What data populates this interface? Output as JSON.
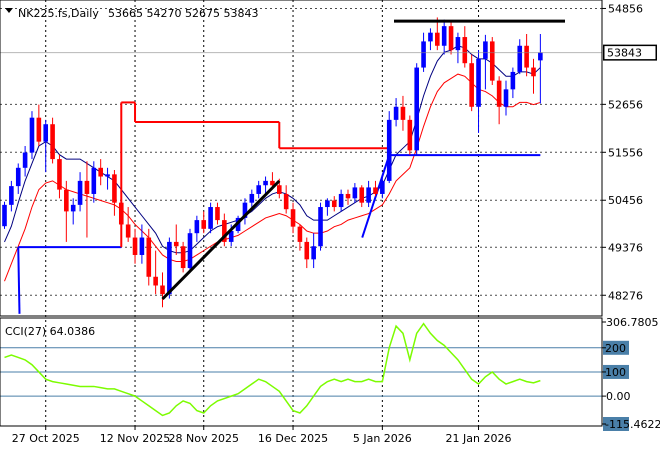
{
  "chart_data": [
    {
      "type": "candlestick",
      "title": "NK225.fs,Daily",
      "ohlc_header": "53665 54270 52675 53843",
      "last_price_label": "53843",
      "y_ticks": [
        "54856",
        "52656",
        "51556",
        "50456",
        "49376",
        "48276"
      ],
      "x_ticks": [
        "27 Oct 2025",
        "12 Nov 2025",
        "28 Nov 2025",
        "16 Dec 2025",
        "5 Jan 2026",
        "21 Jan 2026"
      ],
      "ylim": [
        47800,
        55050
      ],
      "grid": true,
      "colors": {
        "up": "#0000ff",
        "down": "#ff0000",
        "fast_ma": "#000080",
        "slow_ma": "#ff0000",
        "trailing_stop_up": "#0000ff",
        "trailing_stop_down": "#ff0000"
      },
      "candles": [
        [
          49860,
          50420,
          49800,
          50350
        ],
        [
          50350,
          50900,
          50200,
          50780
        ],
        [
          50780,
          51300,
          50600,
          51200
        ],
        [
          51200,
          51700,
          51000,
          51550
        ],
        [
          51550,
          52500,
          51400,
          52350
        ],
        [
          52350,
          52650,
          51700,
          51800
        ],
        [
          51800,
          52300,
          51100,
          52200
        ],
        [
          52200,
          52350,
          51300,
          51400
        ],
        [
          51400,
          51500,
          50500,
          50700
        ],
        [
          50700,
          50900,
          49500,
          50200
        ],
        [
          50200,
          50500,
          49900,
          50350
        ],
        [
          50350,
          51100,
          50200,
          50900
        ],
        [
          50900,
          51350,
          49600,
          50600
        ],
        [
          50600,
          51350,
          50400,
          51200
        ],
        [
          51200,
          51400,
          50800,
          51000
        ],
        [
          51000,
          51200,
          50700,
          51050
        ],
        [
          51050,
          51150,
          50100,
          50400
        ],
        [
          50400,
          50600,
          49700,
          49900
        ],
        [
          49900,
          50300,
          49500,
          49600
        ],
        [
          49600,
          49800,
          49000,
          49200
        ],
        [
          49200,
          49900,
          49000,
          49600
        ],
        [
          49600,
          49800,
          48500,
          48700
        ],
        [
          48700,
          49300,
          48300,
          48500
        ],
        [
          48500,
          48800,
          48000,
          48300
        ],
        [
          48300,
          49600,
          48200,
          49500
        ],
        [
          49500,
          49900,
          49200,
          49400
        ],
        [
          49400,
          49500,
          48800,
          48900
        ],
        [
          48900,
          49800,
          48800,
          49700
        ],
        [
          49700,
          50100,
          49500,
          50000
        ],
        [
          50000,
          50200,
          49700,
          49800
        ],
        [
          49800,
          50400,
          49700,
          50300
        ],
        [
          50300,
          50400,
          49900,
          50000
        ],
        [
          50000,
          50150,
          49400,
          49500
        ],
        [
          49500,
          49900,
          49400,
          49750
        ],
        [
          49750,
          50100,
          49700,
          50050
        ],
        [
          50050,
          50500,
          49900,
          50400
        ],
        [
          50400,
          50700,
          50300,
          50600
        ],
        [
          50600,
          50900,
          50500,
          50800
        ],
        [
          50800,
          51000,
          50600,
          50900
        ],
        [
          50900,
          51100,
          50700,
          50800
        ],
        [
          50800,
          50950,
          50500,
          50600
        ],
        [
          50600,
          50800,
          50150,
          50250
        ],
        [
          50250,
          50400,
          49700,
          49850
        ],
        [
          49850,
          49900,
          49300,
          49500
        ],
        [
          49500,
          49600,
          48900,
          49100
        ],
        [
          49100,
          49700,
          48900,
          49400
        ],
        [
          49400,
          50400,
          49300,
          50300
        ],
        [
          50300,
          50500,
          50100,
          50450
        ],
        [
          50450,
          50550,
          50200,
          50300
        ],
        [
          50300,
          50700,
          50200,
          50600
        ],
        [
          50600,
          50700,
          50350,
          50500
        ],
        [
          50500,
          50850,
          50400,
          50750
        ],
        [
          50750,
          50800,
          50300,
          50400
        ],
        [
          50400,
          50900,
          50300,
          50750
        ],
        [
          50750,
          50900,
          50550,
          50600
        ],
        [
          50600,
          51000,
          50500,
          50900
        ],
        [
          50900,
          52500,
          50850,
          52300
        ],
        [
          52300,
          52800,
          52150,
          52600
        ],
        [
          52600,
          52850,
          52050,
          52300
        ],
        [
          52300,
          52400,
          51500,
          51600
        ],
        [
          51600,
          53600,
          51500,
          53500
        ],
        [
          53500,
          54300,
          53400,
          54100
        ],
        [
          54100,
          54400,
          53900,
          54300
        ],
        [
          54300,
          54650,
          53900,
          54000
        ],
        [
          54000,
          54600,
          53800,
          54450
        ],
        [
          54450,
          54550,
          53800,
          53900
        ],
        [
          53900,
          54300,
          53600,
          54200
        ],
        [
          54200,
          54450,
          53500,
          53600
        ],
        [
          53600,
          53800,
          52500,
          52600
        ],
        [
          52600,
          53900,
          52000,
          53700
        ],
        [
          53700,
          54250,
          53000,
          54100
        ],
        [
          54100,
          54200,
          53100,
          53200
        ],
        [
          53200,
          53300,
          52200,
          52600
        ],
        [
          52600,
          53200,
          52400,
          53000
        ],
        [
          53000,
          53500,
          52800,
          53400
        ],
        [
          53400,
          54150,
          53350,
          54000
        ],
        [
          54000,
          54270,
          53300,
          53500
        ],
        [
          53500,
          53700,
          52900,
          53300
        ],
        [
          53665,
          54270,
          52675,
          53843
        ]
      ],
      "fast_ma": [
        49500,
        49860,
        50400,
        50900,
        51300,
        51700,
        51800,
        51700,
        51500,
        51400,
        51400,
        51400,
        51300,
        51200,
        51100,
        51000,
        50900,
        50700,
        50500,
        50300,
        50100,
        49900,
        49700,
        49400,
        49300,
        49250,
        49250,
        49300,
        49450,
        49600,
        49750,
        49850,
        49900,
        49950,
        50000,
        50100,
        50200,
        50350,
        50500,
        50600,
        50650,
        50600,
        50500,
        50350,
        50100,
        50000,
        50000,
        50000,
        50100,
        50200,
        50300,
        50400,
        50500,
        50550,
        50650,
        50800,
        51150,
        51500,
        51650,
        51800,
        52300,
        52850,
        53300,
        53650,
        53850,
        53900,
        54000,
        53950,
        53800,
        53700,
        53700,
        53600,
        53450,
        53300,
        53300,
        53400,
        53400,
        53350,
        53500
      ],
      "slow_ma": [
        48600,
        49000,
        49400,
        49800,
        50300,
        50700,
        50850,
        50900,
        50800,
        50700,
        50650,
        50600,
        50550,
        50500,
        50450,
        50400,
        50350,
        50250,
        50100,
        49900,
        49750,
        49600,
        49400,
        49200,
        49100,
        49050,
        49050,
        49100,
        49200,
        49300,
        49400,
        49500,
        49550,
        49600,
        49650,
        49750,
        49850,
        49950,
        50050,
        50100,
        50150,
        50100,
        50000,
        49900,
        49750,
        49700,
        49700,
        49750,
        49850,
        49900,
        50000,
        50050,
        50100,
        50150,
        50250,
        50350,
        50600,
        50900,
        51050,
        51200,
        51650,
        52150,
        52600,
        52950,
        53150,
        53250,
        53350,
        53300,
        53150,
        53000,
        52950,
        52850,
        52700,
        52600,
        52600,
        52700,
        52700,
        52650,
        52700
      ],
      "trailing_stop": [
        {
          "from": 0,
          "to": 2,
          "value": null
        },
        {
          "from": 2,
          "to": 17,
          "value": 49380,
          "trend": "up"
        },
        {
          "from": 17,
          "to": 19,
          "value": 52700,
          "trend": "down"
        },
        {
          "from": 19,
          "to": 40,
          "value": 52250,
          "trend": "down"
        },
        {
          "from": 40,
          "to": 56,
          "value": 51650,
          "trend": "down"
        },
        {
          "from": 56,
          "to": 78,
          "value": 51490,
          "trend": "up"
        }
      ],
      "annotations": {
        "resistance_value": 54565,
        "trendline_from": {
          "index": 23,
          "value": 48190
        },
        "trendline_to": {
          "index": 40,
          "value": 50900
        }
      }
    },
    {
      "type": "line",
      "title": "CCI(27) 64.0386",
      "y_ticks": [
        "306.7805",
        "200",
        "100",
        "0.00",
        "-115.4622"
      ],
      "levels": [
        200,
        100,
        0
      ],
      "ylim": [
        -115.4622,
        306.7805
      ],
      "line_color": "#7cfc00",
      "values": [
        160,
        170,
        160,
        150,
        130,
        100,
        70,
        60,
        55,
        50,
        45,
        40,
        40,
        40,
        35,
        30,
        30,
        20,
        10,
        0,
        -20,
        -40,
        -60,
        -80,
        -70,
        -40,
        -20,
        -30,
        -60,
        -70,
        -40,
        -20,
        -10,
        0,
        10,
        30,
        50,
        70,
        60,
        40,
        20,
        -20,
        -60,
        -70,
        -40,
        0,
        40,
        60,
        70,
        60,
        70,
        60,
        60,
        70,
        60,
        60,
        200,
        290,
        260,
        150,
        260,
        300,
        260,
        230,
        210,
        180,
        150,
        110,
        70,
        50,
        80,
        100,
        70,
        50,
        60,
        70,
        60,
        55,
        64
      ]
    }
  ]
}
